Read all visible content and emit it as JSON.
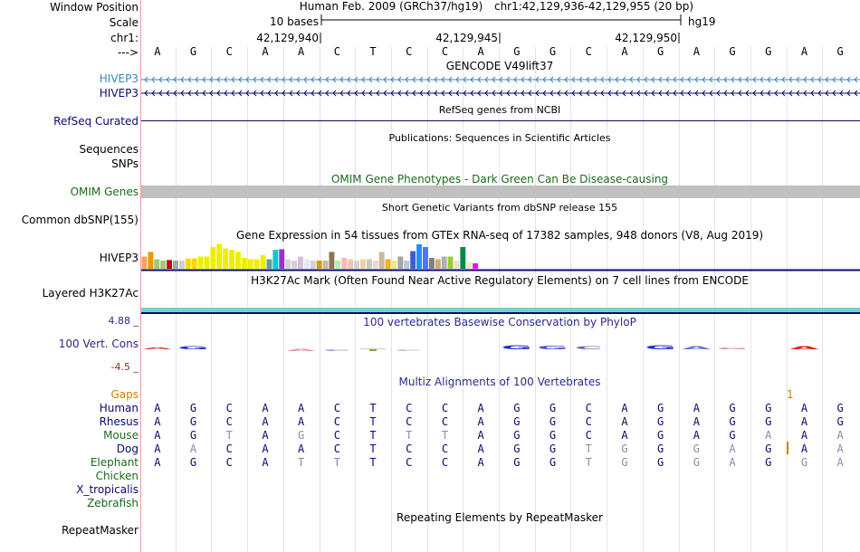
{
  "labels": {
    "window_position": "Window Position",
    "scale": "Scale",
    "chr": "chr1:",
    "arrow": "--->",
    "gencode_1": "HIVEP3",
    "gencode_2": "HIVEP3",
    "refseq": "RefSeq Curated",
    "sequences": "Sequences",
    "snps": "SNPs",
    "omim": "OMIM Genes",
    "common_dbsnp": "Common dbSNP(155)",
    "gtex": "HIVEP3",
    "h3k27ac": "Layered H3K27Ac",
    "phylo_max": "4.88 _",
    "phylo_name": "100 Vert. Cons",
    "phylo_min": "-4.5 _",
    "gaps": "Gaps",
    "species": [
      "Human",
      "Rhesus",
      "Mouse",
      "Dog",
      "Elephant",
      "Chicken",
      "X_tropicalis",
      "Zebrafish"
    ],
    "repeatmasker": "RepeatMasker"
  },
  "header": {
    "assembly": "Human Feb. 2009 (GRCh37/hg19)",
    "position": "chr1:42,129,936-42,129,955 (20 bp)",
    "scale_label": "10 bases",
    "scale_db": "hg19",
    "ticks": [
      "42,129,940",
      "42,129,945",
      "42,129,950"
    ]
  },
  "titles": {
    "gencode": "GENCODE V49lift37",
    "refseq": "RefSeq genes from NCBI",
    "publications": "Publications: Sequences in Scientific Articles",
    "omim": "OMIM Gene Phenotypes - Dark Green Can Be Disease-causing",
    "dbsnp": "Short Genetic Variants from dbSNP release 155",
    "gtex": "Gene Expression in 54 tissues from GTEx RNA-seq of 17382 samples, 948 donors (V8, Aug 2019)",
    "h3k27ac": "H3K27Ac Mark (Often Found Near Active Regulatory Elements) on 7 cell lines from ENCODE",
    "phylop": "100 vertebrates Basewise Conservation by PhyloP",
    "multiz": "Multiz Alignments of 100 Vertebrates",
    "repeatmasker": "Repeating Elements by RepeatMasker"
  },
  "sequence": [
    "A",
    "G",
    "C",
    "A",
    "A",
    "C",
    "T",
    "C",
    "C",
    "A",
    "G",
    "G",
    "C",
    "A",
    "G",
    "A",
    "G",
    "G",
    "A",
    "G"
  ],
  "gap_marker": "1",
  "alignment": {
    "Human": [
      "A",
      "G",
      "C",
      "A",
      "A",
      "C",
      "T",
      "C",
      "C",
      "A",
      "G",
      "G",
      "C",
      "A",
      "G",
      "A",
      "G",
      "G",
      "A",
      "G"
    ],
    "Rhesus": [
      "A",
      "G",
      "C",
      "A",
      "A",
      "C",
      "T",
      "C",
      "C",
      "A",
      "G",
      "G",
      "C",
      "A",
      "G",
      "A",
      "G",
      "G",
      "A",
      "G"
    ],
    "Mouse": [
      "A",
      "G",
      "T",
      "A",
      "G",
      "C",
      "T",
      "T",
      "T",
      "A",
      "G",
      "G",
      "C",
      "A",
      "G",
      "A",
      "G",
      "A",
      "A",
      "A"
    ],
    "Dog": [
      "A",
      "A",
      "C",
      "A",
      "A",
      "C",
      "T",
      "C",
      "C",
      "A",
      "G",
      "G",
      "T",
      "G",
      "G",
      "G",
      "A",
      "G",
      "A",
      "A"
    ],
    "Elephant": [
      "A",
      "G",
      "C",
      "A",
      "T",
      "T",
      "T",
      "C",
      "C",
      "A",
      "G",
      "G",
      "T",
      "G",
      "G",
      "G",
      "A",
      "G",
      "G",
      "A"
    ]
  },
  "alignment_match_color": "#0a0a6e",
  "alignment_mismatch_color": "#8a8aa8",
  "gtex_bars": [
    {
      "v": 0.45,
      "c": "#f4a460"
    },
    {
      "v": 0.62,
      "c": "#ee9900"
    },
    {
      "v": 0.35,
      "c": "#a0c878"
    },
    {
      "v": 0.3,
      "c": "#a0c878"
    },
    {
      "v": 0.32,
      "c": "#cc0000"
    },
    {
      "v": 0.3,
      "c": "#a7a7a7"
    },
    {
      "v": 0.3,
      "c": "#cfcfcf"
    },
    {
      "v": 0.38,
      "c": "#ffd700"
    },
    {
      "v": 0.38,
      "c": "#ffd700"
    },
    {
      "v": 0.45,
      "c": "#eeee00"
    },
    {
      "v": 0.45,
      "c": "#eeee00"
    },
    {
      "v": 0.8,
      "c": "#eeee00"
    },
    {
      "v": 0.92,
      "c": "#eeee00"
    },
    {
      "v": 0.75,
      "c": "#eeee00"
    },
    {
      "v": 0.7,
      "c": "#eeee00"
    },
    {
      "v": 0.62,
      "c": "#eeee00"
    },
    {
      "v": 0.4,
      "c": "#eeee00"
    },
    {
      "v": 0.35,
      "c": "#eeee00"
    },
    {
      "v": 0.35,
      "c": "#eeee00"
    },
    {
      "v": 0.5,
      "c": "#eeee00"
    },
    {
      "v": 0.35,
      "c": "#5f9ea0"
    },
    {
      "v": 0.7,
      "c": "#00cdcd"
    },
    {
      "v": 0.72,
      "c": "#9a32cd"
    },
    {
      "v": 0.35,
      "c": "#d3d3d3"
    },
    {
      "v": 0.3,
      "c": "#d3d3d3"
    },
    {
      "v": 0.45,
      "c": "#d8bfd8"
    },
    {
      "v": 0.35,
      "c": "#e6e6fa"
    },
    {
      "v": 0.3,
      "c": "#d3d3d3"
    },
    {
      "v": 0.3,
      "c": "#cd9b1d"
    },
    {
      "v": 0.3,
      "c": "#cdb79e"
    },
    {
      "v": 0.62,
      "c": "#8b7355"
    },
    {
      "v": 0.3,
      "c": "#b4eeb4"
    },
    {
      "v": 0.4,
      "c": "#ffb6c1"
    },
    {
      "v": 0.35,
      "c": "#eecbad"
    },
    {
      "v": 0.3,
      "c": "#d3d3d3"
    },
    {
      "v": 0.35,
      "c": "#eecfa1"
    },
    {
      "v": 0.35,
      "c": "#c1cdc1"
    },
    {
      "v": 0.3,
      "c": "#eed5d2"
    },
    {
      "v": 0.62,
      "c": "#cdb79e"
    },
    {
      "v": 0.35,
      "c": "#eeb422"
    },
    {
      "v": 0.3,
      "c": "#f0e68c"
    },
    {
      "v": 0.45,
      "c": "#a6a6a6"
    },
    {
      "v": 0.3,
      "c": "#b4cdcd"
    },
    {
      "v": 0.65,
      "c": "#3a5fcd"
    },
    {
      "v": 0.9,
      "c": "#1e90ff"
    },
    {
      "v": 0.8,
      "c": "#4876ff"
    },
    {
      "v": 0.4,
      "c": "#7f7f7f"
    },
    {
      "v": 0.35,
      "c": "#cdaa7d"
    },
    {
      "v": 0.45,
      "c": "#b0b0b0"
    },
    {
      "v": 0.45,
      "c": "#9acd32"
    },
    {
      "v": 0.3,
      "c": "#eedfcc"
    },
    {
      "v": 0.8,
      "c": "#008b45"
    },
    {
      "v": 0.25,
      "c": "#eee8cd"
    },
    {
      "v": 0.2,
      "c": "#ff00ff"
    }
  ],
  "phylop_letters": [
    {
      "b": "A",
      "s": 0.15,
      "c": "#cc2200"
    },
    {
      "b": "G",
      "s": 0.45,
      "c": "#2233bb"
    },
    {
      "b": "C",
      "s": 0.0,
      "c": "#2233bb"
    },
    {
      "b": "A",
      "s": 0.0,
      "c": "#cc2200"
    },
    {
      "b": "A",
      "s": -0.25,
      "c": "#dd88aa"
    },
    {
      "b": "C",
      "s": -0.2,
      "c": "#9999cc"
    },
    {
      "b": "T",
      "s": -0.25,
      "c": "#88aa44"
    },
    {
      "b": "C",
      "s": -0.1,
      "c": "#bbbbdd"
    },
    {
      "b": "C",
      "s": 0.0,
      "c": "#bbbbdd"
    },
    {
      "b": "A",
      "s": 0.0,
      "c": "#cc2200"
    },
    {
      "b": "G",
      "s": 0.6,
      "c": "#2233bb"
    },
    {
      "b": "G",
      "s": 0.5,
      "c": "#4455cc"
    },
    {
      "b": "C",
      "s": 0.35,
      "c": "#6666aa"
    },
    {
      "b": "A",
      "s": 0.0,
      "c": "#cc2200"
    },
    {
      "b": "G",
      "s": 0.65,
      "c": "#2233bb"
    },
    {
      "b": "A",
      "s": 0.35,
      "c": "#6677cc"
    },
    {
      "b": "G",
      "s": 0.1,
      "c": "#cc88aa"
    },
    {
      "b": "G",
      "s": 0.0,
      "c": "#2233bb"
    },
    {
      "b": "A",
      "s": 0.35,
      "c": "#cc2200"
    },
    {
      "b": "G",
      "s": 0.0,
      "c": "#2233bb"
    }
  ]
}
